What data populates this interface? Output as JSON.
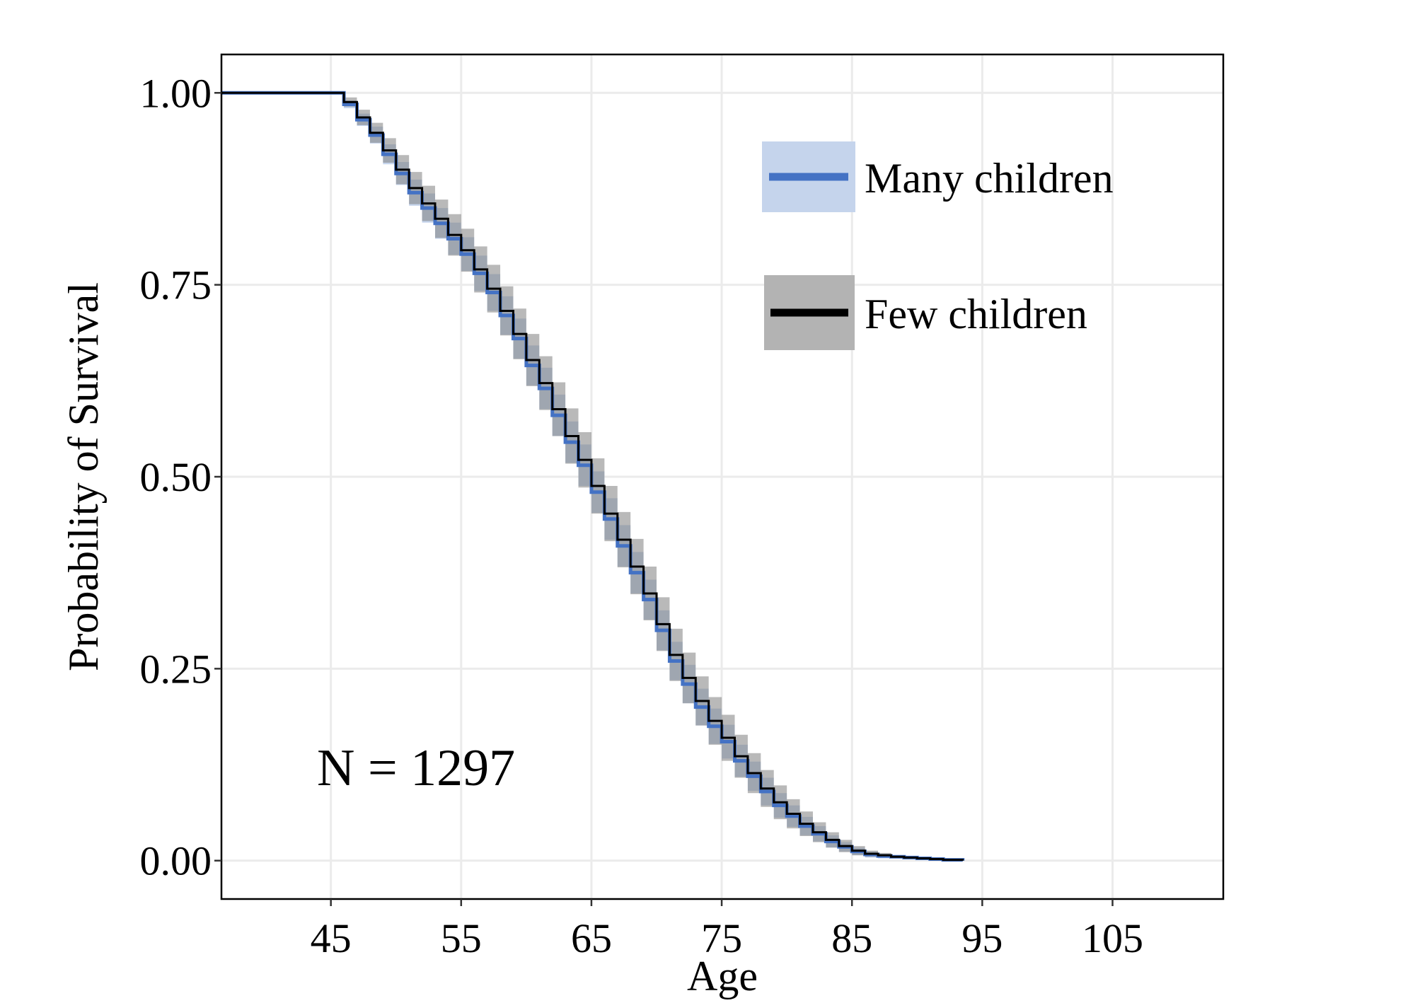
{
  "chart_data": {
    "type": "line",
    "title": "",
    "xlabel": "Age",
    "ylabel": "Probability of Survival",
    "xlim": [
      36.6,
      113.5
    ],
    "ylim": [
      -0.05,
      1.05
    ],
    "x_ticks": [
      45,
      55,
      65,
      75,
      85,
      95,
      105
    ],
    "x_tick_labels": [
      "45",
      "55",
      "65",
      "75",
      "85",
      "95",
      "105"
    ],
    "y_ticks": [
      0,
      0.25,
      0.5,
      0.75,
      1.0
    ],
    "y_tick_labels": [
      "0.00",
      "0.25",
      "0.50",
      "0.75",
      "1.00"
    ],
    "grid": true,
    "legend_position": "top-right",
    "annotation": "N = 1297",
    "x": [
      45,
      46,
      47,
      48,
      49,
      50,
      51,
      52,
      53,
      54,
      55,
      56,
      57,
      58,
      59,
      60,
      61,
      62,
      63,
      64,
      65,
      66,
      67,
      68,
      69,
      70,
      71,
      72,
      73,
      74,
      75,
      76,
      77,
      78,
      79,
      80,
      81,
      82,
      83,
      84,
      85,
      86,
      87,
      88,
      89,
      90,
      91,
      92,
      93.5
    ],
    "series": [
      {
        "name": "Few children",
        "line_color": "#000000",
        "band_color": "#808080",
        "values": [
          1.0,
          0.988,
          0.968,
          0.948,
          0.925,
          0.9,
          0.876,
          0.856,
          0.836,
          0.815,
          0.795,
          0.77,
          0.745,
          0.716,
          0.686,
          0.652,
          0.622,
          0.588,
          0.553,
          0.522,
          0.488,
          0.452,
          0.418,
          0.383,
          0.348,
          0.308,
          0.268,
          0.238,
          0.208,
          0.182,
          0.16,
          0.136,
          0.114,
          0.094,
          0.076,
          0.061,
          0.048,
          0.037,
          0.027,
          0.019,
          0.013,
          0.009,
          0.007,
          0.005,
          0.004,
          0.003,
          0.002,
          0.001,
          0.0
        ],
        "ci_halfwidth": [
          0,
          0.006,
          0.01,
          0.013,
          0.016,
          0.019,
          0.021,
          0.023,
          0.025,
          0.027,
          0.028,
          0.03,
          0.031,
          0.032,
          0.033,
          0.034,
          0.035,
          0.035,
          0.036,
          0.036,
          0.036,
          0.036,
          0.036,
          0.036,
          0.035,
          0.035,
          0.034,
          0.033,
          0.032,
          0.031,
          0.03,
          0.028,
          0.026,
          0.024,
          0.022,
          0.019,
          0.016,
          0.013,
          0.01,
          0.008,
          0.006,
          0.004,
          0.003,
          0.002,
          0.002,
          0.001,
          0.001,
          0.001,
          0
        ]
      },
      {
        "name": "Many children",
        "line_color": "#4472c4",
        "band_color": "#c5d4ec",
        "values": [
          1.0,
          0.985,
          0.965,
          0.945,
          0.92,
          0.895,
          0.87,
          0.85,
          0.83,
          0.81,
          0.79,
          0.765,
          0.74,
          0.71,
          0.68,
          0.645,
          0.615,
          0.58,
          0.545,
          0.515,
          0.48,
          0.445,
          0.41,
          0.375,
          0.34,
          0.3,
          0.26,
          0.23,
          0.2,
          0.175,
          0.155,
          0.13,
          0.11,
          0.09,
          0.072,
          0.058,
          0.045,
          0.035,
          0.025,
          0.018,
          0.012,
          0.008,
          0.006,
          0.005,
          0.004,
          0.003,
          0.002,
          0.001,
          0.0
        ],
        "ci_halfwidth": [
          0,
          0.005,
          0.008,
          0.011,
          0.013,
          0.015,
          0.017,
          0.019,
          0.02,
          0.021,
          0.022,
          0.023,
          0.024,
          0.025,
          0.026,
          0.026,
          0.027,
          0.027,
          0.027,
          0.027,
          0.027,
          0.027,
          0.027,
          0.027,
          0.026,
          0.026,
          0.025,
          0.025,
          0.024,
          0.023,
          0.022,
          0.021,
          0.019,
          0.018,
          0.016,
          0.014,
          0.012,
          0.01,
          0.008,
          0.006,
          0.005,
          0.004,
          0.003,
          0.002,
          0.002,
          0.001,
          0.001,
          0.001,
          0
        ]
      }
    ],
    "legend": [
      {
        "label": "Many children",
        "line_color": "#4472c4",
        "band_color": "#c5d4ec"
      },
      {
        "label": "Few children",
        "line_color": "#000000",
        "band_color": "#b3b3b3"
      }
    ]
  }
}
